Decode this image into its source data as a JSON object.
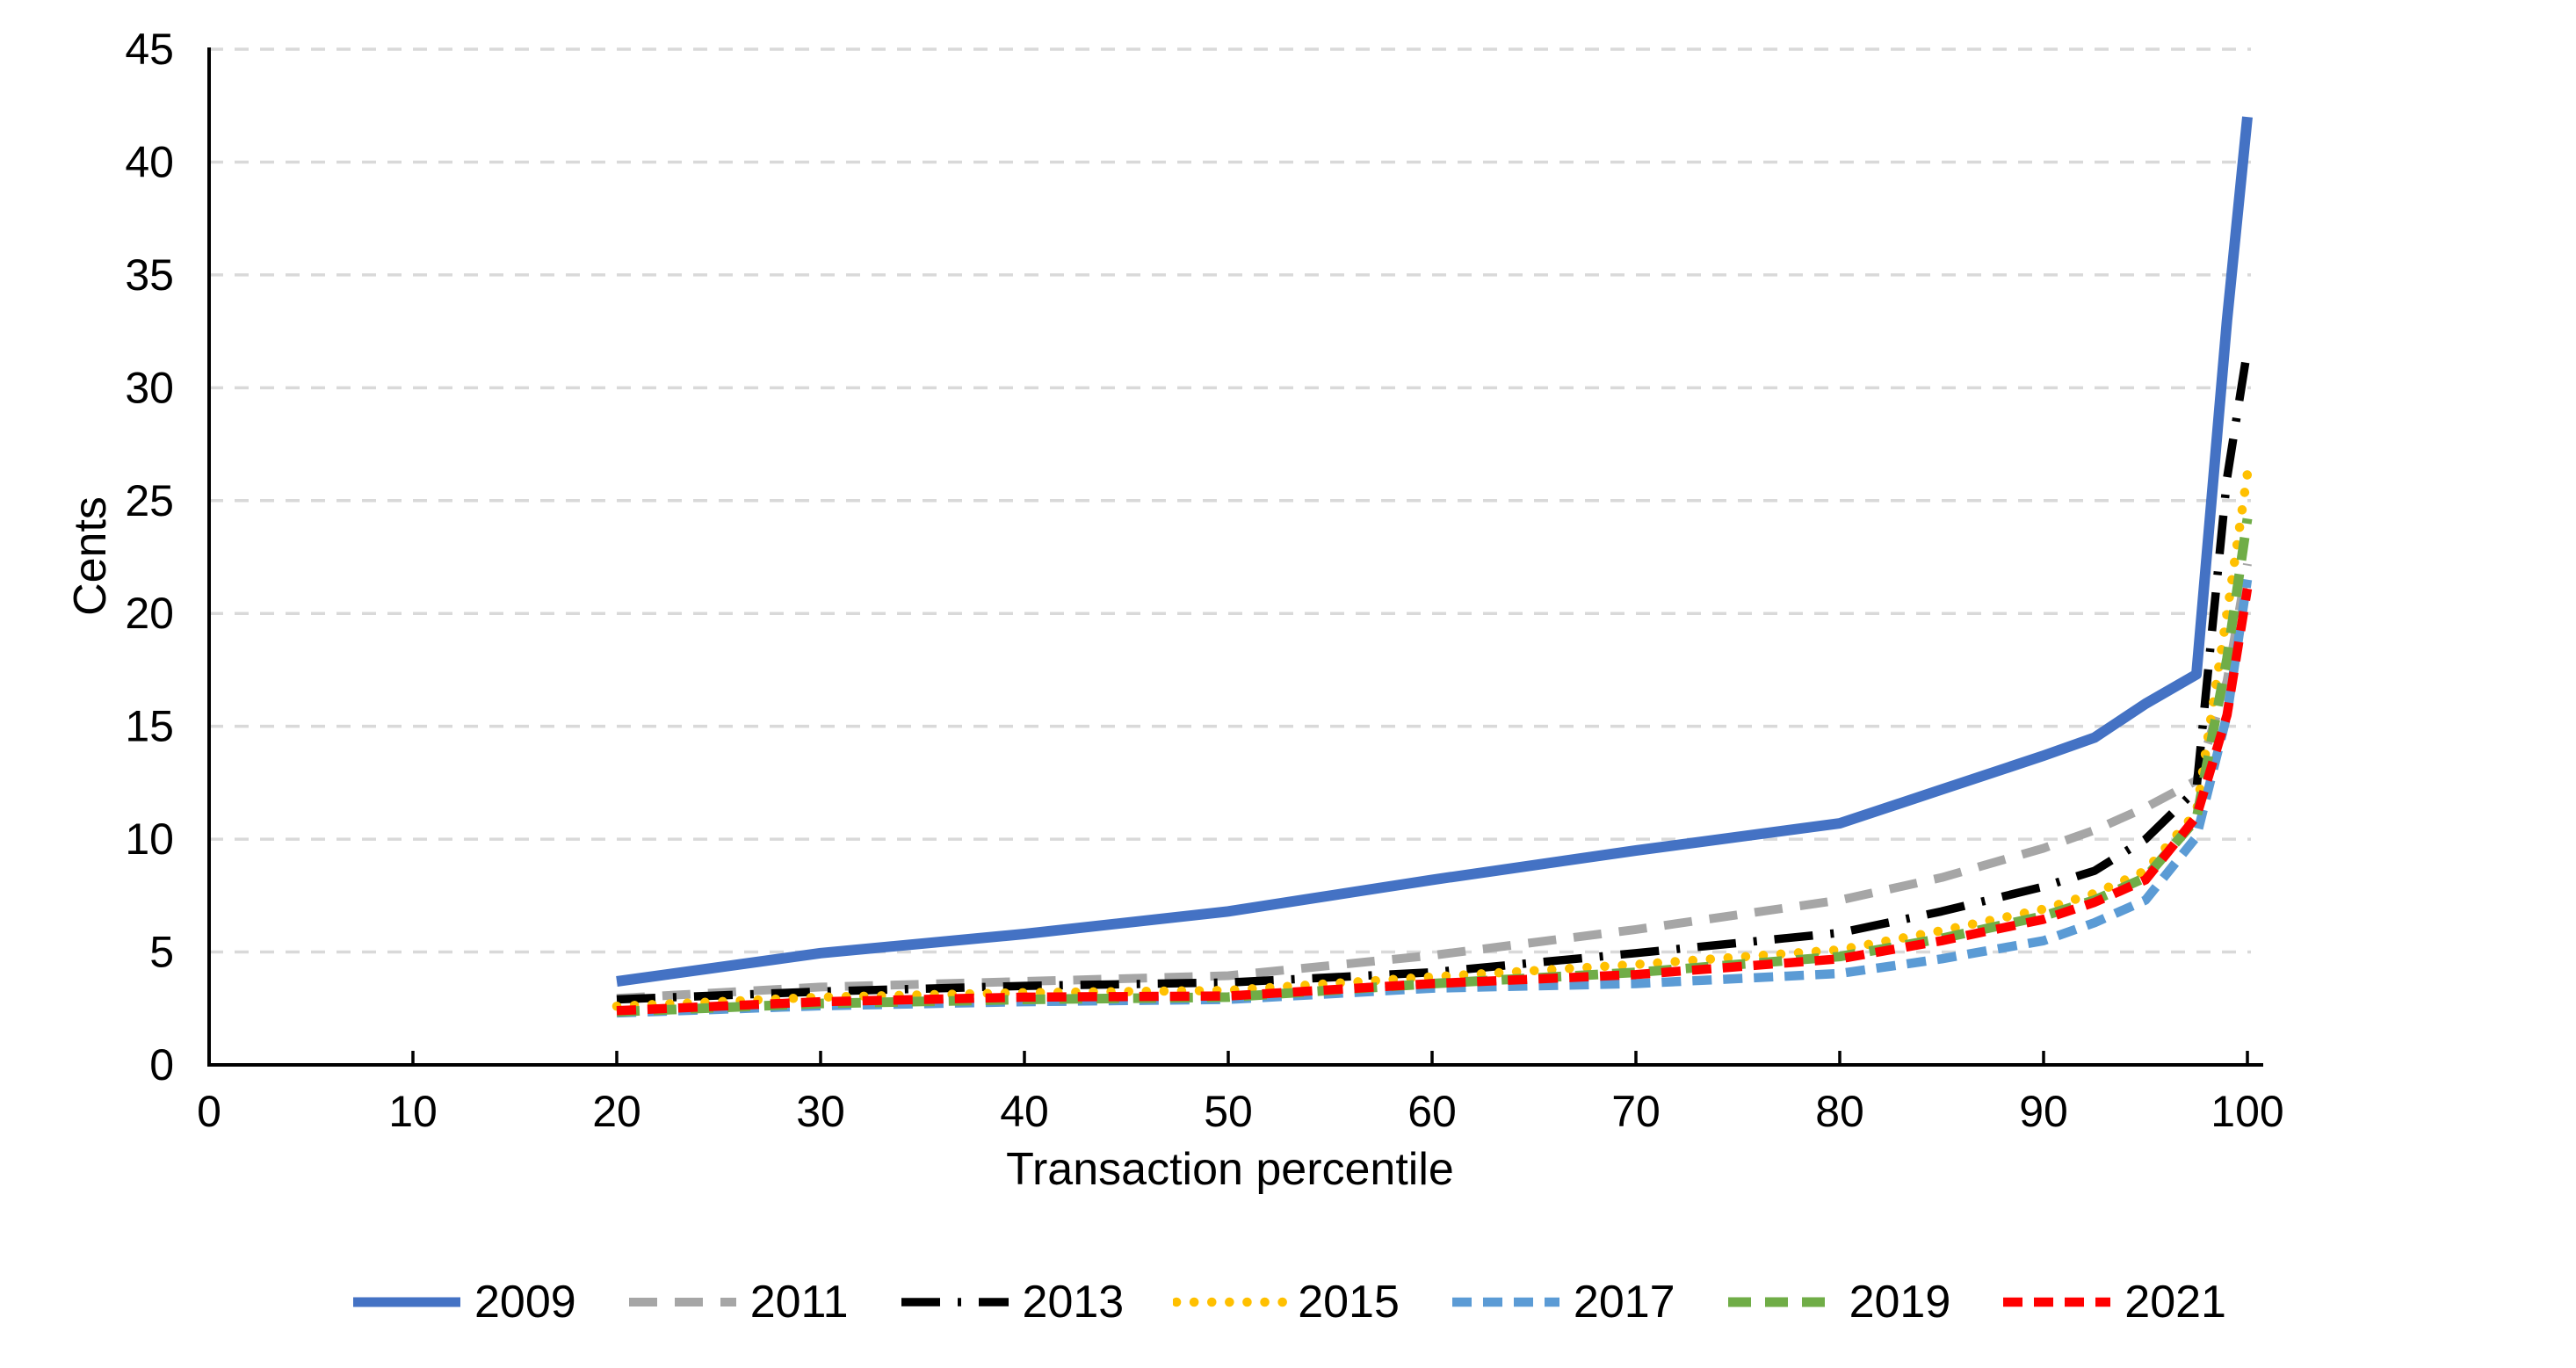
{
  "chart_data": {
    "type": "line",
    "title": "",
    "xlabel": "Transaction percentile",
    "ylabel": "Cents",
    "xlim": [
      0,
      100
    ],
    "ylim": [
      0,
      45
    ],
    "xticks": [
      0,
      10,
      20,
      30,
      40,
      50,
      60,
      70,
      80,
      90,
      100
    ],
    "yticks": [
      0,
      5,
      10,
      15,
      20,
      25,
      30,
      35,
      40,
      45
    ],
    "grid": "horizontal-dashed",
    "legend_position": "bottom-center",
    "colors": {
      "background": "#FFFFFF",
      "gridline": "#D9D9D9",
      "axis": "#000000",
      "text": "#000000"
    },
    "x": [
      20,
      30,
      40,
      50,
      60,
      70,
      80,
      85,
      90,
      92.5,
      95,
      97.5,
      99,
      100
    ],
    "series": [
      {
        "name": "2009",
        "color": "#4472C4",
        "line_style": "solid",
        "values": [
          3.7,
          4.95,
          5.8,
          6.8,
          8.2,
          9.5,
          10.7,
          12.2,
          13.7,
          14.5,
          16.0,
          17.3,
          33.0,
          42.0
        ]
      },
      {
        "name": "2011",
        "color": "#A6A6A6",
        "line_style": "dash",
        "values": [
          2.95,
          3.45,
          3.7,
          3.95,
          4.85,
          6.0,
          7.3,
          8.3,
          9.6,
          10.4,
          11.4,
          12.6,
          17.0,
          22.2
        ]
      },
      {
        "name": "2013",
        "color": "#000000",
        "line_style": "dash-dot",
        "values": [
          2.9,
          3.25,
          3.5,
          3.65,
          4.1,
          4.95,
          5.85,
          6.8,
          7.9,
          8.6,
          10.0,
          12.2,
          26.0,
          31.7
        ]
      },
      {
        "name": "2015",
        "color": "#FFC000",
        "line_style": "dot",
        "values": [
          2.6,
          3.0,
          3.2,
          3.3,
          3.9,
          4.45,
          5.1,
          5.95,
          6.9,
          7.6,
          8.6,
          11.2,
          20.0,
          26.2
        ]
      },
      {
        "name": "2017",
        "color": "#5B9BD5",
        "line_style": "dash-short",
        "values": [
          2.3,
          2.62,
          2.8,
          2.9,
          3.4,
          3.6,
          4.05,
          4.7,
          5.5,
          6.3,
          7.3,
          10.1,
          15.5,
          21.5
        ]
      },
      {
        "name": "2019",
        "color": "#70AD47",
        "line_style": "dash-medium",
        "values": [
          2.35,
          2.72,
          2.9,
          3.0,
          3.6,
          4.1,
          4.8,
          5.6,
          6.6,
          7.3,
          8.3,
          10.9,
          18.0,
          24.2
        ]
      },
      {
        "name": "2021",
        "color": "#FF0000",
        "line_style": "dash-short",
        "values": [
          2.4,
          2.8,
          3.0,
          3.05,
          3.6,
          4.0,
          4.7,
          5.5,
          6.45,
          7.2,
          8.2,
          11.0,
          15.5,
          21.1
        ]
      }
    ]
  }
}
